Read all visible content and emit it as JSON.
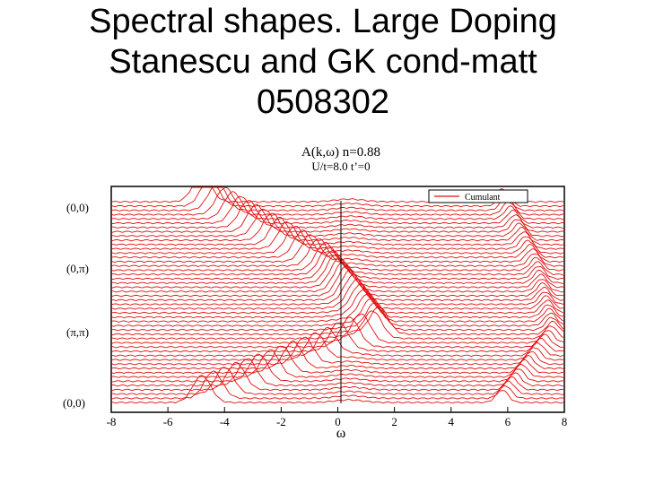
{
  "slide": {
    "title_lines": [
      "Spectral shapes. Large Doping",
      "Stanescu and GK cond-matt",
      "0508302"
    ]
  },
  "figure": {
    "title": "A(k,ω) n=0.88",
    "subtitle": "U/t=8.0 t’=0",
    "legend_label": "Cumulant",
    "xlabel": "ω",
    "k_labels": [
      "(0,0)",
      "(0,π)",
      "(π,π)",
      "(0,0)"
    ]
  },
  "chart_data": {
    "type": "line",
    "title": "A(k,ω) n=0.88",
    "subtitle": "U/t=8.0 t’=0",
    "xlabel": "ω",
    "ylabel": "",
    "xlim": [
      -8,
      8
    ],
    "x_ticks": [
      "-8",
      "-6",
      "-4",
      "-2",
      "0",
      "2",
      "4",
      "6",
      "8"
    ],
    "y_tick_labels": [
      "(0,0)",
      "(0,π)",
      "(π,π)",
      "(0,0)"
    ],
    "legend": [
      "Cumulant"
    ],
    "legend_position": "top-right",
    "grid": false,
    "vertical_line_at": 0,
    "color": "#e01010",
    "num_curves": 48,
    "note_on_values": "waterfall plot of spectral curves along path (0,0)-(0,pi)-(pi,pi)-(0,0); lower-band peak centre and upper-band peak centre per curve (omega)",
    "lower_peak_start": -4.8,
    "lower_peak_at_0_pi": -0.5,
    "lower_peak_at_pi_pi": 1.5,
    "lower_peak_end": -4.8,
    "upper_peak_start": 5.8,
    "upper_peak_at_0_pi": 7.0,
    "upper_peak_at_pi_pi": 7.6,
    "upper_peak_end": 5.8
  }
}
